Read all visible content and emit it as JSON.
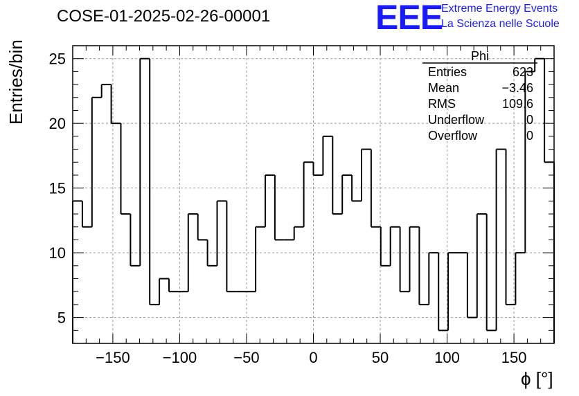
{
  "title": "COSE-01-2025-02-26-00001",
  "logo": {
    "mark": "EEE",
    "line1": "Extreme Energy Events",
    "line2": "La Scienza nelle Scuole",
    "color": "#1a1aff"
  },
  "chart_data": {
    "type": "bar",
    "style": "step-histogram",
    "xlabel": "ϕ [°]",
    "ylabel": "Entries/bin",
    "xlim": [
      -180,
      180
    ],
    "ylim": [
      3,
      26
    ],
    "bin_width": 7.2,
    "x_ticks": [
      -150,
      -100,
      -50,
      0,
      50,
      100,
      150
    ],
    "x_tick_labels": [
      "−150",
      "−100",
      "−50",
      "0",
      "50",
      "100",
      "150"
    ],
    "y_ticks": [
      5,
      10,
      15,
      20,
      25
    ],
    "y_tick_labels": [
      "5",
      "10",
      "15",
      "20",
      "25"
    ],
    "grid": true,
    "values": [
      14,
      12,
      22,
      23,
      20,
      13,
      9,
      25,
      6,
      8,
      7,
      7,
      13,
      11,
      9,
      14,
      7,
      7,
      7,
      12,
      16,
      11,
      11,
      12,
      17,
      16,
      19,
      13,
      16,
      14,
      18,
      12,
      9,
      12,
      7,
      12,
      6,
      10,
      4,
      10,
      10,
      5,
      13,
      4,
      18,
      6,
      10,
      24,
      25,
      17
    ],
    "stats_box": {
      "title": "Phi",
      "rows": [
        {
          "label": "Entries",
          "value": "623"
        },
        {
          "label": "Mean",
          "value": "−3.46"
        },
        {
          "label": "RMS",
          "value": "109.6"
        },
        {
          "label": "Underflow",
          "value": "0"
        },
        {
          "label": "Overflow",
          "value": "0"
        }
      ]
    }
  }
}
